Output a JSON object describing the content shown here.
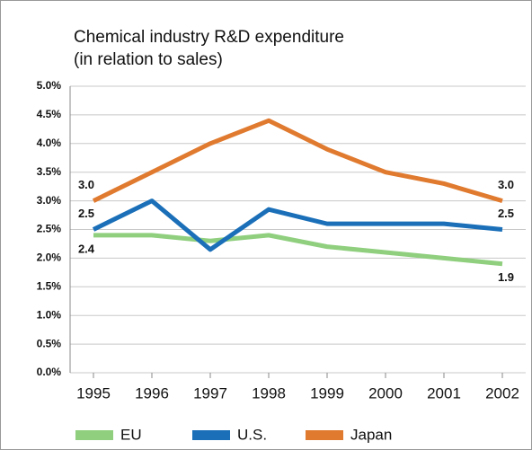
{
  "chart_data": {
    "type": "line",
    "title": "Chemical industry R&D expenditure",
    "subtitle": "(in relation to sales)",
    "categories": [
      "1995",
      "1996",
      "1997",
      "1998",
      "1999",
      "2000",
      "2001",
      "2002"
    ],
    "series": [
      {
        "name": "EU",
        "color": "#8fcf7e",
        "values": [
          2.4,
          2.4,
          2.3,
          2.4,
          2.2,
          2.1,
          2.0,
          1.9
        ],
        "value_labels": [
          "2.4",
          null,
          null,
          null,
          null,
          null,
          null,
          "1.9"
        ]
      },
      {
        "name": "U.S.",
        "color": "#1a6fb8",
        "values": [
          2.5,
          3.0,
          2.15,
          2.85,
          2.6,
          2.6,
          2.6,
          2.5
        ],
        "value_labels": [
          "2.5",
          null,
          null,
          null,
          null,
          null,
          null,
          "2.5"
        ]
      },
      {
        "name": "Japan",
        "color": "#e07a2f",
        "values": [
          3.0,
          3.5,
          4.0,
          4.4,
          3.9,
          3.5,
          3.3,
          3.0
        ],
        "value_labels": [
          "3.0",
          null,
          null,
          null,
          null,
          null,
          null,
          "3.0"
        ]
      }
    ],
    "ylim": [
      0,
      5
    ],
    "yticks": [
      {
        "value": 0,
        "label": "0.0%"
      },
      {
        "value": 0.5,
        "label": "0.5%"
      },
      {
        "value": 1,
        "label": "1.0%"
      },
      {
        "value": 1.5,
        "label": "1.5%"
      },
      {
        "value": 2,
        "label": "2.0%"
      },
      {
        "value": 2.5,
        "label": "2.5%"
      },
      {
        "value": 3,
        "label": "3.0%"
      },
      {
        "value": 3.5,
        "label": "3.5%"
      },
      {
        "value": 4,
        "label": "4.0%"
      },
      {
        "value": 4.5,
        "label": "4.5%"
      },
      {
        "value": 5,
        "label": "5.0%"
      }
    ],
    "grid": true
  }
}
